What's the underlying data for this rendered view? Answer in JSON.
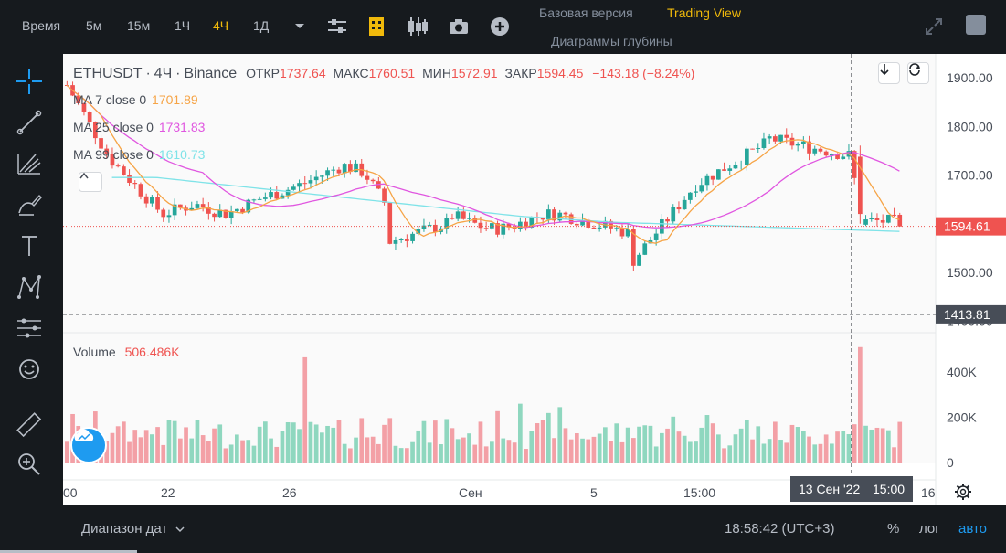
{
  "toolbar": {
    "intervals": [
      {
        "label": "Время",
        "active": false
      },
      {
        "label": "5м",
        "active": false
      },
      {
        "label": "15м",
        "active": false
      },
      {
        "label": "1Ч",
        "active": false
      },
      {
        "label": "4Ч",
        "active": true
      },
      {
        "label": "1Д",
        "active": false
      }
    ],
    "icons": [
      "chevron-down-icon",
      "indicators-icon",
      "templates-icon",
      "chart-type-icon",
      "camera-icon",
      "plus-icon"
    ],
    "versions": {
      "basic": "Базовая версия",
      "tradingview": "Trading View",
      "depth": "Диаграммы глубины"
    },
    "expand_icon": "expand-icon"
  },
  "sidebar": {
    "tools": [
      "crosshair-icon",
      "trend-line-icon",
      "fib-icon",
      "brush-icon",
      "text-icon",
      "pattern-icon",
      "measure-icon",
      "emoji-icon",
      "ruler-icon",
      "zoom-in-icon",
      "magnet-icon"
    ]
  },
  "chart": {
    "symbol": "ETHUSDT",
    "sep1": "·",
    "interval": "4Ч",
    "sep2": "·",
    "exchange": "Binance",
    "open_label": "ОТКР",
    "open": "1737.64",
    "high_label": "МАКС",
    "high": "1760.51",
    "low_label": "МИН",
    "low": "1572.91",
    "close_label": "ЗАКР",
    "close": "1594.45",
    "change": "−143.18 (−8.24%)",
    "ma7_label": "MA 7 close 0",
    "ma7_value": "1701.89",
    "ma25_label": "MA 25 close 0",
    "ma25_value": "1731.83",
    "ma99_label": "MA 99 close 0",
    "ma99_value": "1610.73",
    "volume_label": "Volume",
    "volume_value": "506.486K",
    "price_axis": [
      "1900.00",
      "1800.00",
      "1700.00",
      "1600.00",
      "1500.00",
      "1400.00"
    ],
    "volume_axis": [
      "400K",
      "200K",
      "0"
    ],
    "time_axis": [
      "00",
      "22",
      "26",
      "Сен",
      "5",
      "15:00",
      "16"
    ],
    "current_price": "1594.61",
    "crosshair_price": "1413.81",
    "crosshair_date": "13 Сен '22",
    "crosshair_time": "15:00",
    "colors": {
      "up": "#26a69a",
      "down": "#ef5350",
      "ma7": "#f6a446",
      "ma25": "#e056e0",
      "ma99": "#7fe3e8",
      "up_vol": "#8fd7bf",
      "down_vol": "#f3a0a6"
    }
  },
  "bottom": {
    "date_range": "Диапазон дат",
    "clock": "18:58:42 (UTC+3)",
    "percent": "%",
    "log": "лог",
    "auto": "авто"
  }
}
